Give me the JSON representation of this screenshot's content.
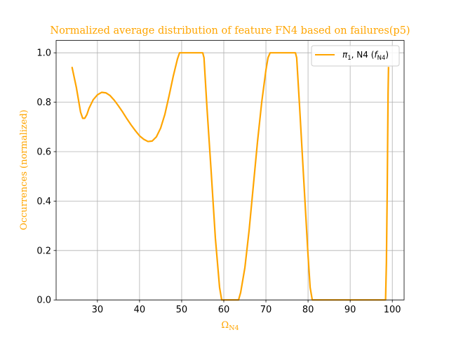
{
  "chart_data": {
    "type": "line",
    "title": "Normalized average distribution of feature FN4 based on failures(p5)",
    "xlabel": "Ω",
    "xlabel_sub": "N4",
    "ylabel": "Occurrences (normalized)",
    "xlim": [
      20.2,
      102.8
    ],
    "ylim": [
      0,
      1.05
    ],
    "xticks": [
      30,
      40,
      50,
      60,
      70,
      80,
      90,
      100
    ],
    "yticks": [
      0.0,
      0.2,
      0.4,
      0.6,
      0.8,
      1.0
    ],
    "ytick_labels": [
      "0.0",
      "0.2",
      "0.4",
      "0.6",
      "0.8",
      "1.0"
    ],
    "grid": true,
    "legend_position": "top-right",
    "text_color": "#FFA500",
    "series": [
      {
        "name": "π1, N4 (fN4)",
        "legend_main": "π",
        "legend_sub1": "1",
        "legend_mid": ", N4 (",
        "legend_f": "f",
        "legend_sub2": "N4",
        "legend_close": ")",
        "color": "#FFA500",
        "x": [
          24.0,
          25.0,
          26.0,
          26.5,
          27.0,
          27.5,
          28.0,
          29.0,
          30.0,
          31.0,
          32.0,
          33.0,
          34.0,
          35.0,
          36.0,
          37.0,
          38.0,
          39.0,
          40.0,
          41.0,
          42.0,
          43.0,
          44.0,
          45.0,
          46.0,
          47.0,
          48.0,
          49.0,
          49.5,
          50.0,
          52.0,
          54.0,
          55.0,
          55.3,
          56.0,
          57.0,
          58.0,
          59.0,
          59.5,
          60.0,
          63.5,
          64.0,
          65.0,
          66.0,
          67.0,
          68.0,
          69.0,
          70.0,
          70.5,
          71.0,
          71.5,
          72.0,
          75.0,
          77.0,
          77.3,
          78.0,
          79.0,
          80.0,
          80.5,
          81.0,
          98.2,
          98.4,
          98.6,
          98.8,
          98.9,
          99.0,
          99.1
        ],
        "y": [
          0.94,
          0.86,
          0.76,
          0.735,
          0.735,
          0.75,
          0.775,
          0.81,
          0.83,
          0.84,
          0.838,
          0.827,
          0.808,
          0.785,
          0.76,
          0.733,
          0.708,
          0.685,
          0.664,
          0.65,
          0.641,
          0.643,
          0.66,
          0.695,
          0.75,
          0.825,
          0.905,
          0.975,
          1.0,
          1.0,
          1.0,
          1.0,
          1.0,
          0.98,
          0.78,
          0.52,
          0.25,
          0.05,
          0.0,
          0.0,
          0.0,
          0.03,
          0.13,
          0.28,
          0.46,
          0.64,
          0.8,
          0.93,
          0.98,
          1.0,
          1.0,
          1.0,
          1.0,
          1.0,
          0.98,
          0.78,
          0.48,
          0.18,
          0.05,
          0.0,
          0.0,
          0.0,
          0.15,
          0.45,
          0.65,
          0.84,
          0.94
        ]
      }
    ]
  }
}
